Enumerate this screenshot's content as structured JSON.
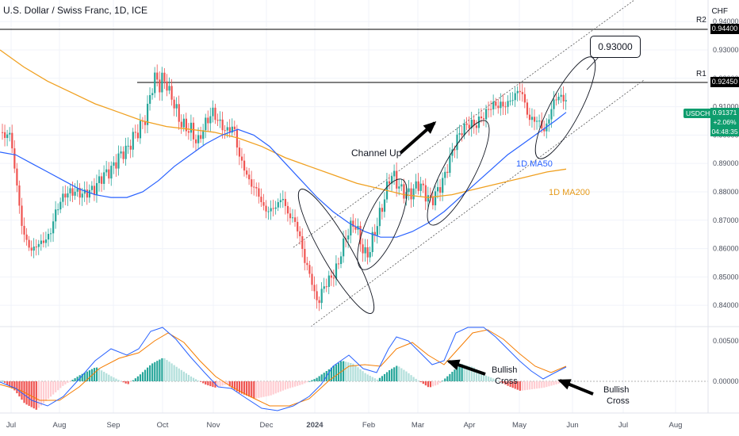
{
  "header": {
    "title": "U.S. Dollar / Swiss Franc, 1D, ICE",
    "currency": "CHF"
  },
  "levels": {
    "r2_label": "R2",
    "r2_value": "0.94400",
    "r1_label": "R1",
    "r1_value": "0.92450"
  },
  "price_tag": {
    "symbol": "USDCHF",
    "price": "0.91371",
    "change": "+2.06%",
    "countdown": "04:48:35"
  },
  "annotations": {
    "target": "0.93000",
    "channel": "Channel Up",
    "ma50": "1D MA50",
    "ma200": "1D MA200",
    "bullish_cross_1_l1": "Bullish",
    "bullish_cross_1_l2": "Cross",
    "bullish_cross_2_l1": "Bullish",
    "bullish_cross_2_l2": "Cross"
  },
  "colors": {
    "up": "#26a69a",
    "down": "#ef5350",
    "ma50": "#2962ff",
    "ma200": "#f0a020",
    "ma50_label": "#2962ff",
    "ma200_label": "#e69a1a"
  },
  "chart_data": {
    "type": "candlestick",
    "title": "U.S. Dollar / Swiss Franc, 1D, ICE",
    "x_ticks": [
      "Jul",
      "Aug",
      "Sep",
      "Oct",
      "Nov",
      "Dec",
      "2024",
      "Feb",
      "Mar",
      "Apr",
      "May",
      "Jun",
      "Jul",
      "Aug"
    ],
    "y_ticks": [
      "0.94000",
      "0.93000",
      "0.92000",
      "0.91000",
      "0.90000",
      "0.89000",
      "0.88000",
      "0.87000",
      "0.86000",
      "0.85000",
      "0.84000"
    ],
    "ylim": [
      0.8325,
      0.9476
    ],
    "close_path": [
      [
        0,
        0.901
      ],
      [
        5,
        0.899
      ],
      [
        10,
        0.902
      ],
      [
        15,
        0.894
      ],
      [
        18,
        0.887
      ],
      [
        22,
        0.878
      ],
      [
        26,
        0.869
      ],
      [
        30,
        0.864
      ],
      [
        34,
        0.862
      ],
      [
        38,
        0.859
      ],
      [
        44,
        0.861
      ],
      [
        50,
        0.862
      ],
      [
        56,
        0.863
      ],
      [
        62,
        0.865
      ],
      [
        68,
        0.872
      ],
      [
        74,
        0.876
      ],
      [
        80,
        0.879
      ],
      [
        88,
        0.88
      ],
      [
        96,
        0.88
      ],
      [
        104,
        0.879
      ],
      [
        110,
        0.88
      ],
      [
        118,
        0.881
      ],
      [
        124,
        0.884
      ],
      [
        130,
        0.886
      ],
      [
        136,
        0.887
      ],
      [
        142,
        0.889
      ],
      [
        148,
        0.892
      ],
      [
        154,
        0.894
      ],
      [
        160,
        0.895
      ],
      [
        166,
        0.899
      ],
      [
        172,
        0.901
      ],
      [
        178,
        0.904
      ],
      [
        184,
        0.907
      ],
      [
        188,
        0.914
      ],
      [
        192,
        0.918
      ],
      [
        196,
        0.921
      ],
      [
        200,
        0.917
      ],
      [
        204,
        0.92
      ],
      [
        208,
        0.919
      ],
      [
        212,
        0.915
      ],
      [
        216,
        0.913
      ],
      [
        220,
        0.91
      ],
      [
        224,
        0.906
      ],
      [
        228,
        0.904
      ],
      [
        232,
        0.903
      ],
      [
        236,
        0.902
      ],
      [
        240,
        0.902
      ],
      [
        244,
        0.899
      ],
      [
        248,
        0.897
      ],
      [
        252,
        0.9
      ],
      [
        256,
        0.903
      ],
      [
        260,
        0.905
      ],
      [
        264,
        0.907
      ],
      [
        268,
        0.908
      ],
      [
        272,
        0.906
      ],
      [
        276,
        0.904
      ],
      [
        280,
        0.903
      ],
      [
        284,
        0.901
      ],
      [
        288,
        0.902
      ],
      [
        292,
        0.903
      ],
      [
        296,
        0.9
      ],
      [
        300,
        0.893
      ],
      [
        304,
        0.89
      ],
      [
        308,
        0.888
      ],
      [
        312,
        0.884
      ],
      [
        318,
        0.882
      ],
      [
        324,
        0.88
      ],
      [
        330,
        0.875
      ],
      [
        336,
        0.873
      ],
      [
        342,
        0.874
      ],
      [
        348,
        0.875
      ],
      [
        352,
        0.877
      ],
      [
        356,
        0.878
      ],
      [
        360,
        0.873
      ],
      [
        366,
        0.871
      ],
      [
        372,
        0.869
      ],
      [
        376,
        0.865
      ],
      [
        380,
        0.86
      ],
      [
        384,
        0.855
      ],
      [
        388,
        0.852
      ],
      [
        392,
        0.849
      ],
      [
        396,
        0.843
      ],
      [
        400,
        0.841
      ],
      [
        404,
        0.844
      ],
      [
        408,
        0.847
      ],
      [
        414,
        0.849
      ],
      [
        420,
        0.851
      ],
      [
        426,
        0.855
      ],
      [
        430,
        0.86
      ],
      [
        434,
        0.863
      ],
      [
        438,
        0.866
      ],
      [
        442,
        0.868
      ],
      [
        446,
        0.869
      ],
      [
        450,
        0.866
      ],
      [
        454,
        0.862
      ],
      [
        458,
        0.858
      ],
      [
        462,
        0.858
      ],
      [
        466,
        0.86
      ],
      [
        470,
        0.865
      ],
      [
        474,
        0.868
      ],
      [
        478,
        0.872
      ],
      [
        482,
        0.876
      ],
      [
        486,
        0.88
      ],
      [
        490,
        0.885
      ],
      [
        494,
        0.886
      ],
      [
        498,
        0.884
      ],
      [
        502,
        0.882
      ],
      [
        506,
        0.88
      ],
      [
        510,
        0.88
      ],
      [
        514,
        0.879
      ],
      [
        518,
        0.88
      ],
      [
        522,
        0.881
      ],
      [
        526,
        0.883
      ],
      [
        530,
        0.882
      ],
      [
        534,
        0.88
      ],
      [
        538,
        0.878
      ],
      [
        542,
        0.877
      ],
      [
        546,
        0.878
      ],
      [
        550,
        0.88
      ],
      [
        554,
        0.882
      ],
      [
        558,
        0.884
      ],
      [
        562,
        0.888
      ],
      [
        566,
        0.891
      ],
      [
        570,
        0.895
      ],
      [
        574,
        0.898
      ],
      [
        578,
        0.9
      ],
      [
        582,
        0.902
      ],
      [
        586,
        0.903
      ],
      [
        590,
        0.904
      ],
      [
        594,
        0.904
      ],
      [
        598,
        0.903
      ],
      [
        602,
        0.905
      ],
      [
        606,
        0.906
      ],
      [
        610,
        0.907
      ],
      [
        614,
        0.909
      ],
      [
        618,
        0.91
      ],
      [
        622,
        0.911
      ],
      [
        626,
        0.91
      ],
      [
        630,
        0.911
      ],
      [
        634,
        0.91
      ],
      [
        638,
        0.911
      ],
      [
        642,
        0.912
      ],
      [
        646,
        0.913
      ],
      [
        650,
        0.915
      ],
      [
        654,
        0.916
      ],
      [
        658,
        0.914
      ],
      [
        662,
        0.91
      ],
      [
        666,
        0.905
      ],
      [
        670,
        0.906
      ],
      [
        674,
        0.905
      ],
      [
        678,
        0.905
      ],
      [
        682,
        0.903
      ],
      [
        686,
        0.901
      ],
      [
        690,
        0.905
      ],
      [
        694,
        0.909
      ],
      [
        698,
        0.912
      ],
      [
        702,
        0.914
      ],
      [
        706,
        0.913
      ],
      [
        710,
        0.913
      ],
      [
        714,
        0.912
      ]
    ],
    "ma50_path": [
      [
        0,
        0.894
      ],
      [
        20,
        0.893
      ],
      [
        40,
        0.89
      ],
      [
        60,
        0.887
      ],
      [
        80,
        0.884
      ],
      [
        100,
        0.881
      ],
      [
        120,
        0.879
      ],
      [
        140,
        0.878
      ],
      [
        160,
        0.878
      ],
      [
        180,
        0.88
      ],
      [
        200,
        0.884
      ],
      [
        220,
        0.889
      ],
      [
        240,
        0.893
      ],
      [
        260,
        0.897
      ],
      [
        280,
        0.9
      ],
      [
        300,
        0.902
      ],
      [
        320,
        0.9
      ],
      [
        340,
        0.896
      ],
      [
        360,
        0.89
      ],
      [
        380,
        0.884
      ],
      [
        400,
        0.878
      ],
      [
        420,
        0.873
      ],
      [
        440,
        0.869
      ],
      [
        460,
        0.866
      ],
      [
        480,
        0.864
      ],
      [
        500,
        0.864
      ],
      [
        520,
        0.866
      ],
      [
        540,
        0.869
      ],
      [
        560,
        0.873
      ],
      [
        580,
        0.878
      ],
      [
        600,
        0.883
      ],
      [
        620,
        0.888
      ],
      [
        640,
        0.893
      ],
      [
        660,
        0.897
      ],
      [
        680,
        0.901
      ],
      [
        700,
        0.905
      ],
      [
        714,
        0.908
      ]
    ],
    "ma200_path": [
      [
        0,
        0.93
      ],
      [
        30,
        0.924
      ],
      [
        60,
        0.919
      ],
      [
        90,
        0.915
      ],
      [
        120,
        0.911
      ],
      [
        150,
        0.908
      ],
      [
        180,
        0.905
      ],
      [
        210,
        0.903
      ],
      [
        240,
        0.902
      ],
      [
        270,
        0.901
      ],
      [
        300,
        0.899
      ],
      [
        330,
        0.896
      ],
      [
        360,
        0.892
      ],
      [
        390,
        0.889
      ],
      [
        420,
        0.886
      ],
      [
        450,
        0.883
      ],
      [
        480,
        0.881
      ],
      [
        510,
        0.879
      ],
      [
        540,
        0.878
      ],
      [
        570,
        0.879
      ],
      [
        600,
        0.881
      ],
      [
        630,
        0.883
      ],
      [
        660,
        0.885
      ],
      [
        690,
        0.887
      ],
      [
        714,
        0.888
      ]
    ],
    "macd_zero": "0.00000",
    "macd_ticks": [
      "0.00500",
      "0.00000"
    ],
    "channel": {
      "upper": [
        [
          370,
          0.868
        ],
        [
          800,
          0.96
        ]
      ],
      "lower": [
        [
          392,
          0.838
        ],
        [
          812,
          0.925
        ]
      ]
    }
  }
}
